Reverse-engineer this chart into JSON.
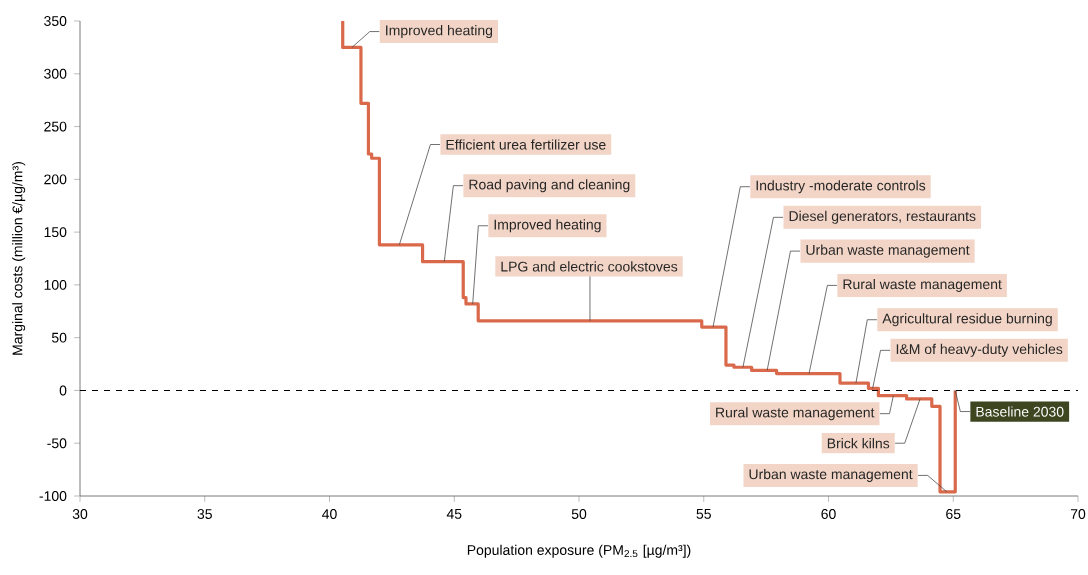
{
  "chart_data": {
    "type": "step",
    "xlabel": "Population exposure (PM$_{2.5}$ [µg/m³])",
    "ylabel": "Marginal costs (million €/µg/m³)",
    "x": [
      40.53,
      40.53,
      41.26,
      41.56,
      41.69,
      42.0,
      43.73,
      45.36,
      45.47,
      45.96,
      54.92,
      55.89,
      56.21,
      56.92,
      57.92,
      60.46,
      61.6,
      62.0,
      63.13,
      64.14,
      64.47,
      65.08
    ],
    "series": [
      {
        "color": "#d9694a",
        "values": [
          350,
          325,
          272,
          224,
          220,
          138,
          122,
          88,
          82,
          66,
          60,
          24,
          22,
          19,
          16,
          7,
          2,
          -5,
          -8,
          -15,
          -96,
          0
        ]
      }
    ],
    "xlim": [
      30,
      70
    ],
    "ylim": [
      -100,
      350
    ],
    "xticks": [
      30,
      35,
      40,
      45,
      50,
      55,
      60,
      65,
      70
    ],
    "yticks": [
      -100,
      -50,
      0,
      50,
      100,
      150,
      200,
      250,
      300,
      350
    ],
    "ref_lines": [
      {
        "axis": "y",
        "value": 0,
        "color": "#000000",
        "line_style": "dashed"
      }
    ],
    "marker": "none",
    "annotations": [
      {
        "text": "Improved heating",
        "x": 40.9,
        "y": 325
      },
      {
        "text": "Efficient urea fertilizer use",
        "x": 42.8,
        "y": 138
      },
      {
        "text": "Road paving and cleaning",
        "x": 44.6,
        "y": 122
      },
      {
        "text": "Improved heating",
        "x": 45.74,
        "y": 82
      },
      {
        "text": "LPG and electric cookstoves",
        "x": 50.44,
        "y": 66
      },
      {
        "text": "Industry -moderate controls",
        "x": 55.37,
        "y": 60
      },
      {
        "text": "Diesel generators, restaurants",
        "x": 56.57,
        "y": 22
      },
      {
        "text": "Urban waste management",
        "x": 57.54,
        "y": 19
      },
      {
        "text": "Rural waste management",
        "x": 59.22,
        "y": 16
      },
      {
        "text": "Agricultural residue burning",
        "x": 61.1,
        "y": 7
      },
      {
        "text": "I&M of heavy-duty vehicles",
        "x": 61.77,
        "y": 2
      },
      {
        "text": "Rural waste management",
        "x": 62.6,
        "y": -5
      },
      {
        "text": "Brick kilns",
        "x": 63.67,
        "y": -8
      },
      {
        "text": "Urban waste management",
        "x": 64.74,
        "y": -96
      },
      {
        "text": "Baseline 2030",
        "x": 65.08,
        "y": 0
      }
    ]
  }
}
